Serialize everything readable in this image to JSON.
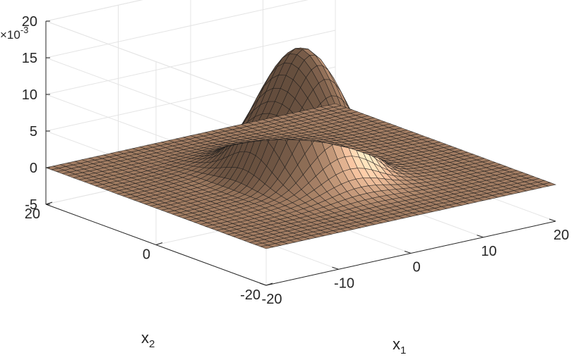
{
  "chart_data": {
    "type": "surface",
    "description_source": "3D mesh surface of a single peaked function with small negative side lobes",
    "xlabel": "x",
    "xlabel_subscript": "1",
    "ylabel": "x",
    "ylabel_subscript": "2",
    "zlabel": "",
    "exponent_label": "×10",
    "exponent_power": "-3",
    "xlim": [
      -20,
      20
    ],
    "ylim": [
      -20,
      20
    ],
    "zlim": [
      -5,
      20
    ],
    "xticks": [
      -20,
      -10,
      0,
      10,
      20
    ],
    "yticks": [
      -20,
      0,
      20
    ],
    "zticks": [
      -5,
      0,
      5,
      10,
      15,
      20
    ],
    "xtick_labels": [
      "-20",
      "-10",
      "0",
      "10",
      "20"
    ],
    "ytick_labels": [
      "-20",
      "0",
      "20"
    ],
    "ztick_labels": [
      "-5",
      "0",
      "5",
      "10",
      "15",
      "20"
    ],
    "peak": {
      "x1": 0,
      "x2": 0,
      "z_e3": 17.5
    },
    "grid": true,
    "surface_color": "#b68c6e",
    "mesh_color": "#1a1a1a",
    "mesh_resolution": 41
  }
}
